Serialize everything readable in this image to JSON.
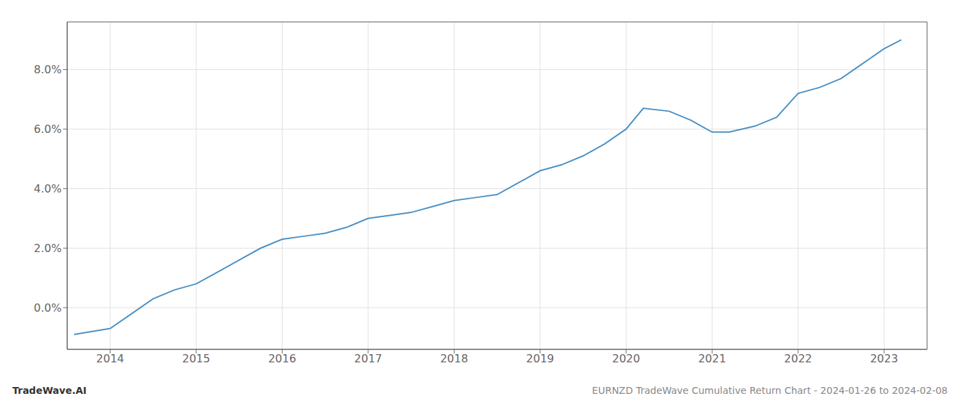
{
  "chart_data": {
    "type": "line",
    "annotations": [
      "TradeWave.AI",
      "EURNZD TradeWave Cumulative Return Chart - 2024-01-26 to 2024-02-08"
    ],
    "x": [
      2013.58,
      2014.0,
      2014.25,
      2014.5,
      2014.75,
      2015.0,
      2015.25,
      2015.5,
      2015.75,
      2016.0,
      2016.25,
      2016.5,
      2016.75,
      2017.0,
      2017.25,
      2017.5,
      2017.75,
      2018.0,
      2018.25,
      2018.5,
      2018.75,
      2019.0,
      2019.25,
      2019.5,
      2019.75,
      2020.0,
      2020.2,
      2020.5,
      2020.75,
      2021.0,
      2021.2,
      2021.5,
      2021.75,
      2022.0,
      2022.25,
      2022.5,
      2022.75,
      2023.0,
      2023.2
    ],
    "values": [
      -0.009,
      -0.007,
      -0.002,
      0.003,
      0.006,
      0.008,
      0.012,
      0.016,
      0.02,
      0.023,
      0.024,
      0.025,
      0.027,
      0.03,
      0.031,
      0.032,
      0.034,
      0.036,
      0.037,
      0.038,
      0.042,
      0.046,
      0.048,
      0.051,
      0.055,
      0.06,
      0.067,
      0.066,
      0.063,
      0.059,
      0.059,
      0.061,
      0.064,
      0.072,
      0.074,
      0.077,
      0.082,
      0.087,
      0.09
    ],
    "color": "#4a90c4",
    "xlim": [
      2013.5,
      2023.5
    ],
    "ylim": [
      -0.014,
      0.096
    ],
    "xticks": [
      2014,
      2015,
      2016,
      2017,
      2018,
      2019,
      2020,
      2021,
      2022,
      2023
    ],
    "yticks": [
      {
        "value": 0.0,
        "label": "0.0%"
      },
      {
        "value": 0.02,
        "label": "2.0%"
      },
      {
        "value": 0.04,
        "label": "4.0%"
      },
      {
        "value": 0.06,
        "label": "6.0%"
      },
      {
        "value": 0.08,
        "label": "8.0%"
      }
    ],
    "grid": true
  }
}
